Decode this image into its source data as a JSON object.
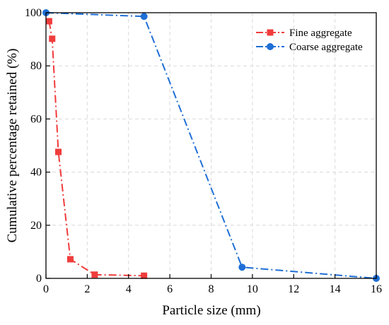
{
  "chart_data": {
    "type": "line",
    "title": "",
    "xlabel": "Particle size (mm)",
    "ylabel": "Cumulative percentage retained (%)",
    "xlim": [
      0,
      16
    ],
    "ylim": [
      0,
      100
    ],
    "xticks": [
      0,
      2,
      4,
      6,
      8,
      10,
      12,
      14,
      16
    ],
    "yticks": [
      0,
      20,
      40,
      60,
      80,
      100
    ],
    "grid": true,
    "legend_position": "top-right",
    "series": [
      {
        "name": "Fine aggregate",
        "color": "#f03c3c",
        "marker": "square",
        "line_style": "dash-dot",
        "x": [
          0.15,
          0.3,
          0.6,
          1.18,
          2.36,
          4.75
        ],
        "y": [
          96.8,
          90.2,
          47.6,
          7.2,
          1.4,
          1.0
        ]
      },
      {
        "name": "Coarse aggregate",
        "color": "#1f6fd6",
        "marker": "circle",
        "line_style": "dash-dot",
        "x": [
          0,
          4.75,
          9.5,
          16
        ],
        "y": [
          100,
          98.6,
          4.2,
          0
        ]
      }
    ]
  }
}
